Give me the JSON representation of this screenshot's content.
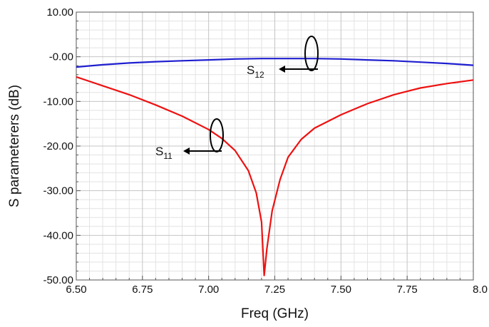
{
  "chart_data": {
    "type": "line",
    "title": "",
    "xlabel": "Freq (GHz)",
    "ylabel": "S parameterers (dB)",
    "xlim": [
      6.5,
      8.0
    ],
    "ylim": [
      -50,
      10
    ],
    "x_ticks": [
      "6.50",
      "6.75",
      "7.00",
      "7.25",
      "7.50",
      "7.75",
      "8.0"
    ],
    "y_ticks": [
      "10.00",
      "-0.00",
      "-10.00",
      "-20.00",
      "-30.00",
      "-40.00",
      "-50.00"
    ],
    "grid": true,
    "series": [
      {
        "name": "S12",
        "color": "#1f1fd0",
        "x": [
          6.5,
          6.6,
          6.7,
          6.8,
          6.9,
          7.0,
          7.1,
          7.2,
          7.3,
          7.4,
          7.5,
          7.6,
          7.7,
          7.8,
          7.9,
          8.0
        ],
        "y": [
          -2.3,
          -1.8,
          -1.4,
          -1.1,
          -0.9,
          -0.7,
          -0.5,
          -0.4,
          -0.4,
          -0.4,
          -0.5,
          -0.7,
          -0.9,
          -1.2,
          -1.5,
          -1.9
        ]
      },
      {
        "name": "S11",
        "color": "#ee1111",
        "x": [
          6.5,
          6.6,
          6.7,
          6.8,
          6.9,
          7.0,
          7.05,
          7.1,
          7.15,
          7.18,
          7.2,
          7.21,
          7.22,
          7.24,
          7.27,
          7.3,
          7.35,
          7.4,
          7.5,
          7.6,
          7.7,
          7.8,
          7.9,
          8.0
        ],
        "y": [
          -4.5,
          -6.5,
          -8.5,
          -10.8,
          -13.3,
          -16.3,
          -18.3,
          -21.0,
          -25.5,
          -30.5,
          -37.0,
          -49.0,
          -43.0,
          -34.5,
          -27.5,
          -22.5,
          -18.5,
          -16.0,
          -13.0,
          -10.5,
          -8.5,
          -7.0,
          -6.0,
          -5.2
        ]
      }
    ],
    "annotations": [
      {
        "label": "S",
        "subscript": "12"
      },
      {
        "label": "S",
        "subscript": "11"
      }
    ]
  }
}
